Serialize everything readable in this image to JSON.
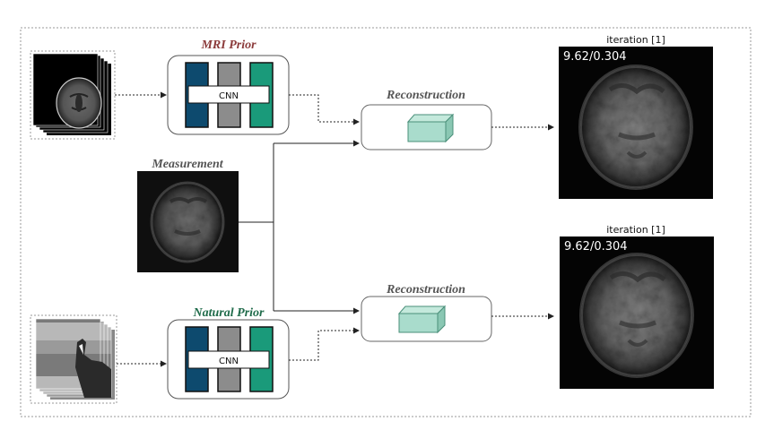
{
  "labels": {
    "mri_prior": "MRI Prior",
    "natural_prior": "Natural Prior",
    "measurement": "Measurement",
    "reconstruction_top": "Reconstruction",
    "reconstruction_bottom": "Reconstruction",
    "cnn_top": "CNN",
    "cnn_bottom": "CNN"
  },
  "outputs": {
    "top": {
      "title": "iteration [1]",
      "metrics": "9.62/0.304"
    },
    "bottom": {
      "title": "iteration [1]",
      "metrics": "9.62/0.304"
    }
  },
  "colors": {
    "mri_prior_label": "#8b3a3a",
    "natural_prior_label": "#1f6b4a",
    "measurement_label": "#555555",
    "reconstruction_label": "#555555",
    "cnn_bar_blue": "#0d4a6e",
    "cnn_bar_gray": "#8c8c8c",
    "cnn_bar_green": "#1a9a7a",
    "cube_fill": "#a9dccc",
    "cube_stroke": "#4a8f7a",
    "arrow": "#222222"
  },
  "icons": {
    "mri_stack": "mri-brain-slice-stack-image",
    "natural_stack": "horse-photo-stack-image",
    "measurement": "noisy-brain-measurement-image",
    "output_top": "reconstructed-brain-image",
    "output_bottom": "reconstructed-brain-image",
    "cube_top": "reconstruction-cube-icon",
    "cube_bottom": "reconstruction-cube-icon"
  }
}
